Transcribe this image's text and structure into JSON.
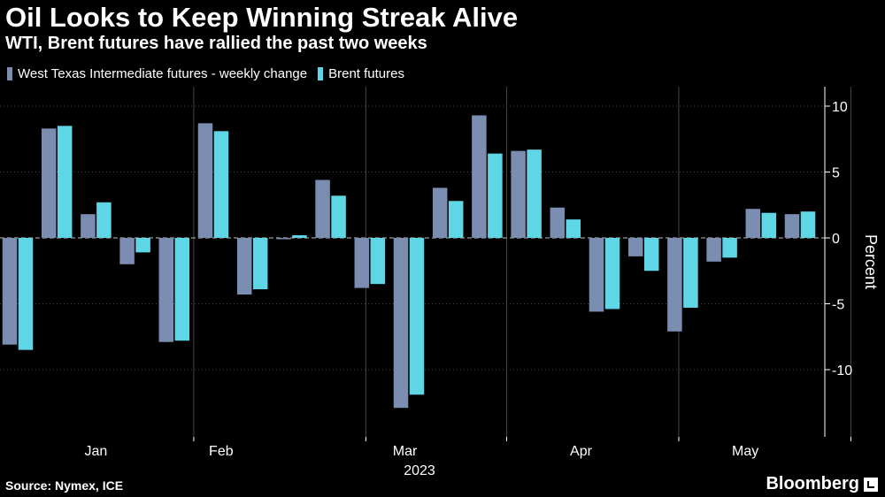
{
  "header": {
    "title": "Oil Looks to Keep Winning Streak Alive",
    "subtitle": "WTI, Brent futures have rallied the past two weeks"
  },
  "footer": {
    "source": "Source: Nymex, ICE",
    "brand": "Bloomberg",
    "brand_icon": "bloomberg-terminal-icon"
  },
  "colors": {
    "background": "#000000",
    "wti": "#7b8db1",
    "brent": "#5fd6e6",
    "grid": "#444444",
    "axis": "#ffffff"
  },
  "chart_data": {
    "type": "bar",
    "title": "Oil Looks to Keep Winning Streak Alive",
    "subtitle": "WTI, Brent futures have rallied the past two weeks",
    "xlabel": "2023",
    "ylabel": "Percent",
    "ylim": [
      -15,
      10
    ],
    "y_ticks": [
      10,
      5,
      0,
      -5,
      -10
    ],
    "x_tick_labels": [
      "Jan",
      "Feb",
      "Mar",
      "Apr",
      "May"
    ],
    "x_tick_label_week": [
      2,
      5.2,
      9.9,
      14.4,
      18.6
    ],
    "month_boundary_week": [
      4.5,
      8.9,
      12.5,
      16.9,
      21.3
    ],
    "legend_position": "top-left",
    "grid": true,
    "series": [
      {
        "name": "West Texas Intermediate futures - weekly change",
        "values": [
          -8.1,
          8.3,
          1.8,
          -2.0,
          -7.9,
          8.7,
          -4.3,
          -0.1,
          4.4,
          -3.8,
          -12.9,
          3.8,
          9.3,
          6.6,
          2.3,
          -5.6,
          -1.4,
          -7.1,
          -1.8,
          2.2,
          1.8
        ]
      },
      {
        "name": "Brent futures",
        "values": [
          -8.5,
          8.5,
          2.7,
          -1.1,
          -7.8,
          8.1,
          -3.9,
          0.2,
          3.2,
          -3.5,
          -11.9,
          2.8,
          6.4,
          6.7,
          1.4,
          -5.4,
          -2.5,
          -5.3,
          -1.5,
          1.9,
          2.0
        ]
      }
    ]
  }
}
